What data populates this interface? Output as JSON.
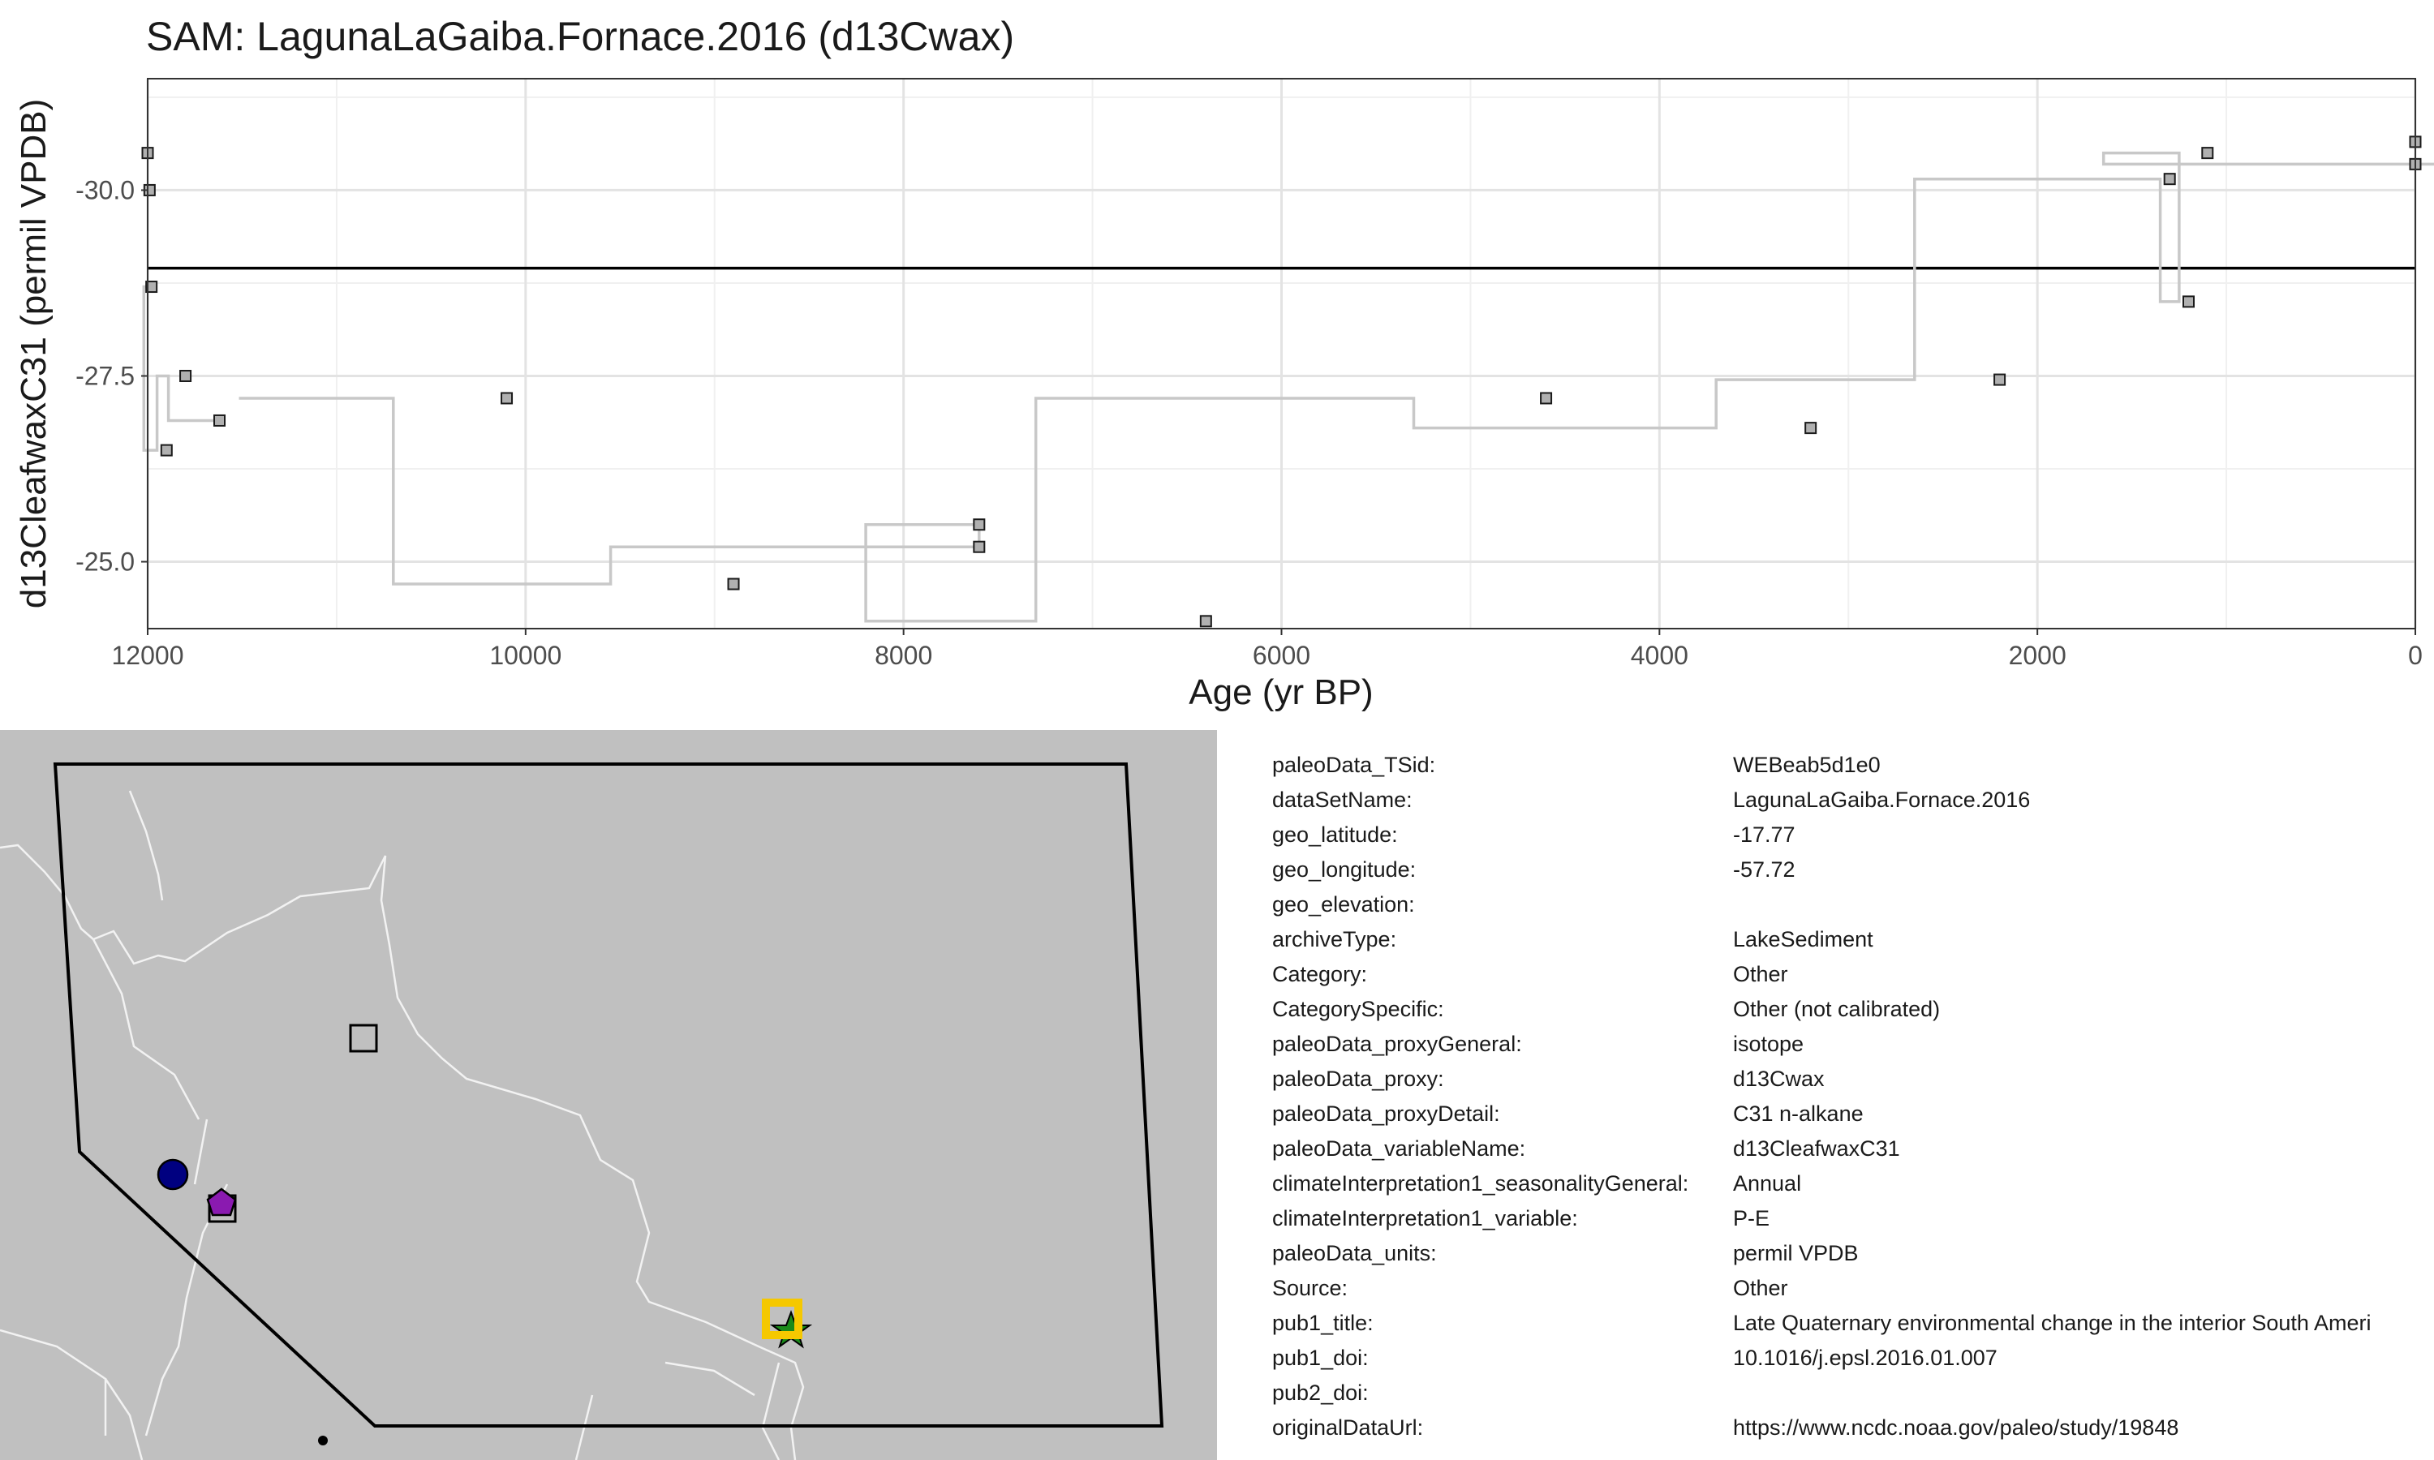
{
  "title": "SAM: LagunaLaGaiba.Fornace.2016 (d13Cwax)",
  "chart_data": {
    "type": "line",
    "title": "SAM: LagunaLaGaiba.Fornace.2016 (d13Cwax)",
    "xlabel": "Age (yr BP)",
    "ylabel": "d13CleafwaxC31 (permil VPDB)",
    "xlim": [
      12000,
      0
    ],
    "x_reversed": true,
    "ylim": [
      -24.1,
      -31.5
    ],
    "y_reversed": true,
    "x_ticks": [
      12000,
      10000,
      8000,
      6000,
      4000,
      2000,
      0
    ],
    "x_tick_labels": [
      "12000",
      "10000",
      "8000",
      "6000",
      "4000",
      "2000",
      "0"
    ],
    "y_ticks": [
      -30.0,
      -27.5,
      -25.0
    ],
    "y_tick_labels": [
      "-30.0",
      "-27.5",
      "-25.0"
    ],
    "reference_line_y": -28.95,
    "grid": true,
    "series": [
      {
        "style": "step",
        "x": [
          12000,
          11990,
          11980,
          11900,
          11800,
          11620,
          10100,
          8900,
          7600,
          7600,
          6400,
          4600,
          3200,
          2200,
          1300,
          1200,
          1100,
          0,
          0
        ],
        "y": [
          -30.5,
          -30.0,
          -28.7,
          -26.5,
          -27.5,
          -26.9,
          -27.2,
          -24.7,
          -25.2,
          -25.5,
          -24.2,
          -27.2,
          -26.8,
          -27.45,
          -30.15,
          -28.5,
          -30.5,
          -30.35,
          -30.65
        ]
      }
    ]
  },
  "map": {
    "markers": [
      {
        "shape": "square",
        "color": "#c0c0c0"
      },
      {
        "shape": "circle",
        "color": "#000080"
      },
      {
        "shape": "pentagon",
        "color": "#8a1ab0"
      },
      {
        "shape": "square",
        "color": "#c0c0c0"
      },
      {
        "shape": "star",
        "color": "#1a8a1a"
      },
      {
        "shape": "square-highlight",
        "color": "#f5c800"
      },
      {
        "shape": "dot",
        "color": "#000000"
      }
    ]
  },
  "metadata": [
    {
      "key": "paleoData_TSid:",
      "value": "WEBeab5d1e0"
    },
    {
      "key": "dataSetName:",
      "value": "LagunaLaGaiba.Fornace.2016"
    },
    {
      "key": "geo_latitude:",
      "value": "-17.77"
    },
    {
      "key": "geo_longitude:",
      "value": "-57.72"
    },
    {
      "key": "geo_elevation:",
      "value": ""
    },
    {
      "key": "archiveType:",
      "value": "LakeSediment"
    },
    {
      "key": "Category:",
      "value": "Other"
    },
    {
      "key": "CategorySpecific:",
      "value": "Other (not calibrated)"
    },
    {
      "key": "paleoData_proxyGeneral:",
      "value": "isotope"
    },
    {
      "key": "paleoData_proxy:",
      "value": "d13Cwax"
    },
    {
      "key": "paleoData_proxyDetail:",
      "value": "C31 n-alkane"
    },
    {
      "key": "paleoData_variableName:",
      "value": "d13CleafwaxC31"
    },
    {
      "key": "climateInterpretation1_seasonalityGeneral:",
      "value": "Annual"
    },
    {
      "key": "climateInterpretation1_variable:",
      "value": "P-E"
    },
    {
      "key": "paleoData_units:",
      "value": "permil VPDB"
    },
    {
      "key": "Source:",
      "value": "Other"
    },
    {
      "key": "pub1_title:",
      "value": "Late Quaternary environmental change in the interior South Ameri"
    },
    {
      "key": "pub1_doi:",
      "value": "10.1016/j.epsl.2016.01.007"
    },
    {
      "key": "pub2_doi:",
      "value": ""
    },
    {
      "key": "originalDataUrl:",
      "value": "https://www.ncdc.noaa.gov/paleo/study/19848"
    }
  ]
}
